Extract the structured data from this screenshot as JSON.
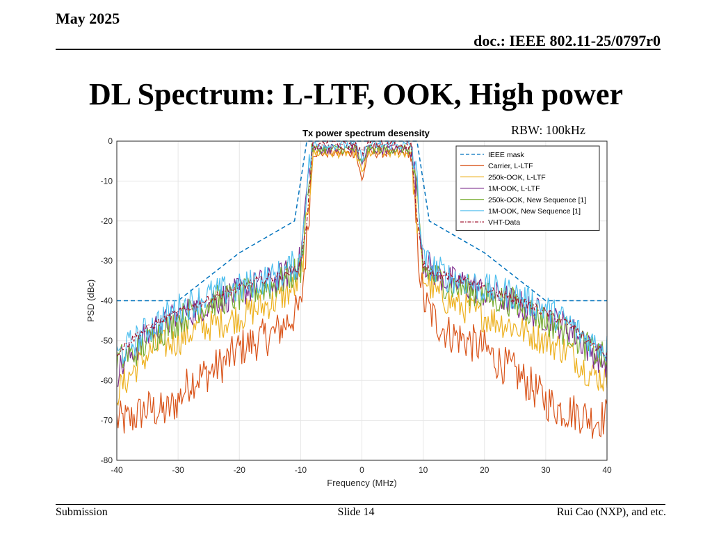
{
  "header": {
    "date": "May 2025",
    "doc": "doc.: IEEE 802.11-25/0797r0"
  },
  "slide_title": "DL Spectrum: L-LTF, OOK, High power",
  "annotation": "RBW: 100kHz",
  "footer": {
    "left": "Submission",
    "center": "Slide 14",
    "right": "Rui Cao (NXP), and etc."
  },
  "chart_data": {
    "type": "line",
    "title": "Tx power spectrum desensity",
    "xlabel": "Frequency (MHz)",
    "ylabel": "PSD (dBc)",
    "xlim": [
      -40,
      40
    ],
    "ylim": [
      -80,
      0
    ],
    "xticks": [
      -40,
      -30,
      -20,
      -10,
      0,
      10,
      20,
      30,
      40
    ],
    "yticks": [
      0,
      -10,
      -20,
      -30,
      -40,
      -50,
      -60,
      -70,
      -80
    ],
    "grid": true,
    "legend_position": "top-right",
    "series": [
      {
        "name": "IEEE mask",
        "color": "#0072BD",
        "style": "dashed",
        "x": [
          -40,
          -30,
          -20,
          -11,
          -9,
          9,
          11,
          20,
          30,
          40
        ],
        "y": [
          -40,
          -40,
          -28,
          -20,
          0,
          0,
          -20,
          -28,
          -40,
          -40
        ]
      },
      {
        "name": "Carrier, L-LTF",
        "color": "#D95319",
        "style": "solid",
        "x": [
          -40,
          -38,
          -35,
          -32,
          -30,
          -28,
          -25,
          -22,
          -20,
          -17,
          -14,
          -12,
          -10,
          -9,
          -8,
          -5,
          -1,
          0,
          1,
          5,
          8,
          9,
          10,
          12,
          14,
          17,
          20,
          22,
          25,
          28,
          30,
          32,
          35,
          38,
          40
        ],
        "y": [
          -70,
          -70,
          -67,
          -68,
          -65,
          -60,
          -58,
          -55,
          -52,
          -50,
          -48,
          -45,
          -42,
          -25,
          -3,
          -3,
          -3,
          -10,
          -3,
          -3,
          -3,
          -25,
          -40,
          -45,
          -48,
          -50,
          -52,
          -55,
          -58,
          -62,
          -65,
          -67,
          -68,
          -70,
          -69
        ]
      },
      {
        "name": "250k-OOK, L-LTF",
        "color": "#EDB120",
        "style": "solid",
        "x": [
          -40,
          -37,
          -34,
          -30,
          -27,
          -24,
          -20,
          -17,
          -14,
          -12,
          -10,
          -9,
          -8,
          -5,
          -1,
          0,
          1,
          5,
          8,
          9,
          10,
          12,
          14,
          17,
          20,
          24,
          27,
          30,
          34,
          37,
          40
        ],
        "y": [
          -63,
          -57,
          -52,
          -50,
          -47,
          -46,
          -44,
          -42,
          -40,
          -38,
          -35,
          -20,
          -3,
          -3,
          -3,
          -8,
          -3,
          -3,
          -3,
          -20,
          -34,
          -38,
          -40,
          -42,
          -44,
          -46,
          -48,
          -50,
          -53,
          -58,
          -60
        ]
      },
      {
        "name": "1M-OOK, L-LTF",
        "color": "#7E2F8E",
        "style": "solid",
        "x": [
          -40,
          -37,
          -34,
          -30,
          -27,
          -24,
          -20,
          -17,
          -14,
          -12,
          -10,
          -9,
          -8,
          -5,
          -1,
          0,
          1,
          5,
          8,
          9,
          10,
          12,
          14,
          17,
          20,
          24,
          27,
          30,
          34,
          37,
          40
        ],
        "y": [
          -58,
          -52,
          -47,
          -44,
          -42,
          -40,
          -38,
          -36,
          -35,
          -33,
          -30,
          -12,
          -2,
          -2,
          -2,
          -6,
          -2,
          -2,
          -2,
          -12,
          -30,
          -33,
          -35,
          -36,
          -38,
          -40,
          -42,
          -44,
          -47,
          -52,
          -56
        ]
      },
      {
        "name": "250k-OOK, New Sequence [1]",
        "color": "#77AC30",
        "style": "solid",
        "x": [
          -40,
          -37,
          -34,
          -30,
          -27,
          -24,
          -20,
          -17,
          -14,
          -12,
          -10,
          -9,
          -8,
          -5,
          -1,
          0,
          1,
          5,
          8,
          9,
          10,
          12,
          14,
          17,
          20,
          24,
          27,
          30,
          34,
          37,
          40
        ],
        "y": [
          -55,
          -53,
          -49,
          -45,
          -42,
          -40,
          -39,
          -37,
          -36,
          -34,
          -32,
          -15,
          -2,
          -2,
          -2,
          -6,
          -2,
          -2,
          -2,
          -15,
          -32,
          -34,
          -36,
          -37,
          -39,
          -40,
          -42,
          -45,
          -48,
          -52,
          -55
        ]
      },
      {
        "name": "1M-OOK, New Sequence [1]",
        "color": "#4DBEEE",
        "style": "solid",
        "x": [
          -40,
          -37,
          -34,
          -30,
          -27,
          -24,
          -20,
          -17,
          -14,
          -12,
          -10,
          -9,
          -8,
          -5,
          -1,
          0,
          1,
          5,
          8,
          9,
          10,
          12,
          14,
          17,
          20,
          24,
          27,
          30,
          34,
          37,
          40
        ],
        "y": [
          -54,
          -50,
          -46,
          -42,
          -40,
          -38,
          -37,
          -35,
          -34,
          -32,
          -30,
          -10,
          -1,
          -1,
          -1,
          -4,
          -1,
          -1,
          -1,
          -10,
          -30,
          -32,
          -34,
          -35,
          -37,
          -38,
          -40,
          -42,
          -46,
          -50,
          -52
        ]
      },
      {
        "name": "VHT-Data",
        "color": "#A2142F",
        "style": "dashdot",
        "x": [
          -40,
          -37,
          -34,
          -30,
          -27,
          -24,
          -20,
          -17,
          -14,
          -12,
          -10,
          -9,
          -8,
          -5,
          -1,
          0,
          1,
          5,
          8,
          9,
          10,
          12,
          14,
          17,
          20,
          24,
          27,
          30,
          34,
          37,
          40
        ],
        "y": [
          -53,
          -49,
          -46,
          -43,
          -41,
          -39,
          -37,
          -35,
          -34,
          -33,
          -31,
          -20,
          -1,
          -1,
          -1,
          -3,
          -1,
          -1,
          -1,
          -20,
          -31,
          -33,
          -34,
          -35,
          -37,
          -39,
          -41,
          -43,
          -46,
          -50,
          -54
        ]
      }
    ]
  }
}
